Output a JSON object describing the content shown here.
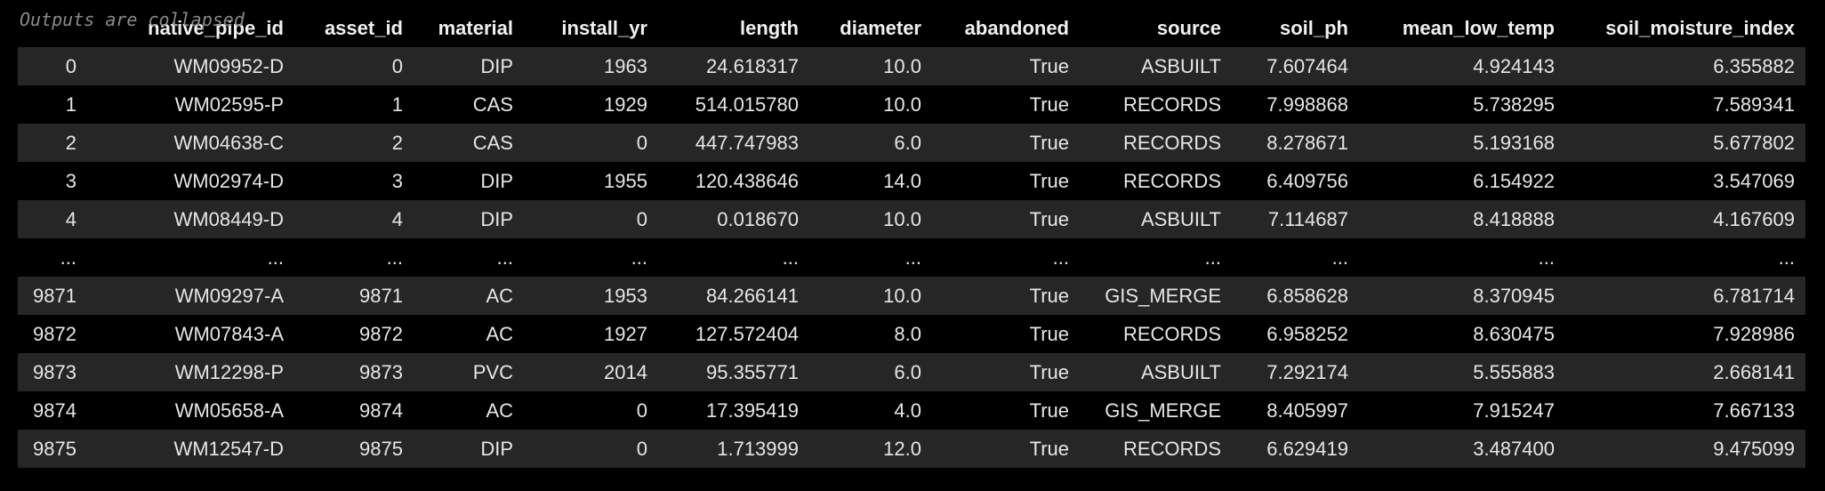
{
  "output": {
    "collapsed_note": "Outputs are collapsed"
  },
  "table": {
    "columns": [
      "",
      "native_pipe_id",
      "asset_id",
      "material",
      "install_yr",
      "length",
      "diameter",
      "abandoned",
      "source",
      "soil_ph",
      "mean_low_temp",
      "soil_moisture_index"
    ],
    "rows": [
      [
        "0",
        "WM09952-D",
        "0",
        "DIP",
        "1963",
        "24.618317",
        "10.0",
        "True",
        "ASBUILT",
        "7.607464",
        "4.924143",
        "6.355882"
      ],
      [
        "1",
        "WM02595-P",
        "1",
        "CAS",
        "1929",
        "514.015780",
        "10.0",
        "True",
        "RECORDS",
        "7.998868",
        "5.738295",
        "7.589341"
      ],
      [
        "2",
        "WM04638-C",
        "2",
        "CAS",
        "0",
        "447.747983",
        "6.0",
        "True",
        "RECORDS",
        "8.278671",
        "5.193168",
        "5.677802"
      ],
      [
        "3",
        "WM02974-D",
        "3",
        "DIP",
        "1955",
        "120.438646",
        "14.0",
        "True",
        "RECORDS",
        "6.409756",
        "6.154922",
        "3.547069"
      ],
      [
        "4",
        "WM08449-D",
        "4",
        "DIP",
        "0",
        "0.018670",
        "10.0",
        "True",
        "ASBUILT",
        "7.114687",
        "8.418888",
        "4.167609"
      ],
      [
        "...",
        "...",
        "...",
        "...",
        "...",
        "...",
        "...",
        "...",
        "...",
        "...",
        "...",
        "..."
      ],
      [
        "9871",
        "WM09297-A",
        "9871",
        "AC",
        "1953",
        "84.266141",
        "10.0",
        "True",
        "GIS_MERGE",
        "6.858628",
        "8.370945",
        "6.781714"
      ],
      [
        "9872",
        "WM07843-A",
        "9872",
        "AC",
        "1927",
        "127.572404",
        "8.0",
        "True",
        "RECORDS",
        "6.958252",
        "8.630475",
        "7.928986"
      ],
      [
        "9873",
        "WM12298-P",
        "9873",
        "PVC",
        "2014",
        "95.355771",
        "6.0",
        "True",
        "ASBUILT",
        "7.292174",
        "5.555883",
        "2.668141"
      ],
      [
        "9874",
        "WM05658-A",
        "9874",
        "AC",
        "0",
        "17.395419",
        "4.0",
        "True",
        "GIS_MERGE",
        "8.405997",
        "7.915247",
        "7.667133"
      ],
      [
        "9875",
        "WM12547-D",
        "9875",
        "DIP",
        "0",
        "1.713999",
        "12.0",
        "True",
        "RECORDS",
        "6.629419",
        "3.487400",
        "9.475099"
      ]
    ]
  }
}
